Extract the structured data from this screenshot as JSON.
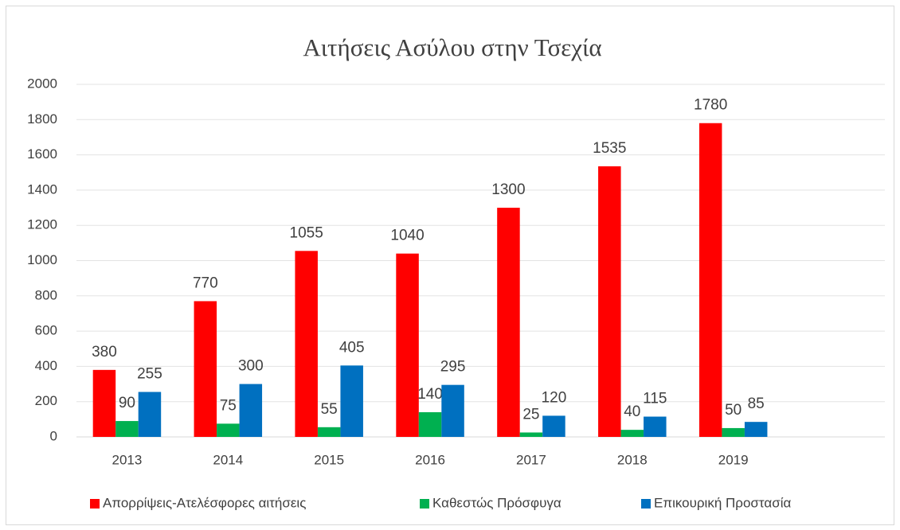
{
  "chart_data": {
    "type": "bar",
    "title": "Αιτήσεις Ασύλου στην Τσεχία",
    "categories": [
      "2013",
      "2014",
      "2015",
      "2016",
      "2017",
      "2018",
      "2019",
      null
    ],
    "series": [
      {
        "name": "Απορρίψεις-Ατελέσφορες αιτήσεις",
        "color": "#ff0000",
        "values": [
          380,
          770,
          1055,
          1040,
          1300,
          1535,
          1780,
          null
        ]
      },
      {
        "name": "Καθεστώς Πρόσφυγα",
        "color": "#00b050",
        "values": [
          90,
          75,
          55,
          140,
          25,
          40,
          50,
          null
        ]
      },
      {
        "name": "Επικουρική Προστασία",
        "color": "#0070c0",
        "values": [
          255,
          300,
          405,
          295,
          120,
          115,
          85,
          null
        ]
      }
    ],
    "ylim": [
      0,
      2000
    ],
    "yticks": [
      0,
      200,
      400,
      600,
      800,
      1000,
      1200,
      1400,
      1600,
      1800,
      2000
    ],
    "grid": true,
    "legend": "bottom"
  }
}
